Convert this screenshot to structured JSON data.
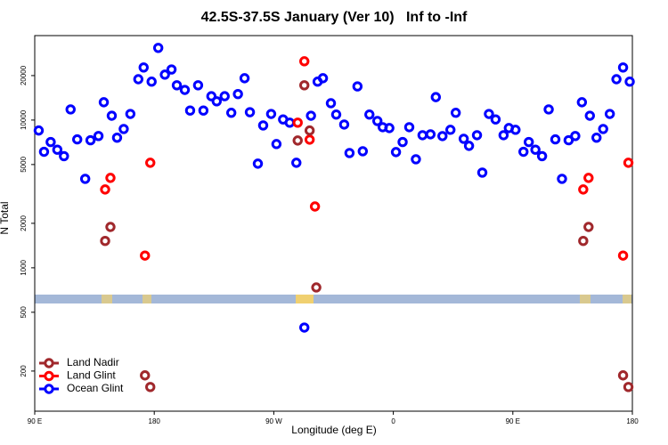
{
  "chart_data": {
    "type": "scatter",
    "title": "42.5S-37.5S January (Ver 10)   Inf to -Inf",
    "x_label": "Longitude (deg E)",
    "y_label": "N Total",
    "log_y": true,
    "legend": "lower left",
    "xlim": [
      90,
      540
    ],
    "ylim": [
      107,
      37300
    ],
    "xticks": [
      {
        "value": 90,
        "label": "90 E"
      },
      180,
      {
        "value": 270,
        "label": "90 W"
      },
      {
        "value": 360,
        "label": "0"
      },
      {
        "value": 450,
        "label": "90 E"
      },
      {
        "value": 540,
        "label": "180"
      }
    ],
    "yticks": [
      200,
      500,
      1000,
      2000,
      5000,
      10000,
      20000
    ],
    "series": [
      {
        "name": "Land Nadir",
        "color": "#a0282c",
        "x": [
          143,
          147,
          173,
          177,
          293,
          288,
          297,
          302,
          503,
          507,
          533,
          537
        ],
        "values": [
          1520,
          1890,
          187,
          156,
          17200,
          7270,
          8500,
          736,
          1520,
          1890,
          187,
          156
        ]
      },
      {
        "name": "Land Glint",
        "color": "#ff0000",
        "x": [
          143,
          147,
          173,
          177,
          293,
          288,
          297,
          301,
          503,
          507,
          533,
          537
        ],
        "values": [
          3390,
          4060,
          1210,
          5140,
          25000,
          9600,
          7370,
          2600,
          3390,
          4060,
          1210,
          5140
        ]
      },
      {
        "name": "Ocean Glint",
        "color": "#0000ff",
        "x": [
          93,
          97,
          102,
          107,
          112,
          117,
          122,
          128,
          132,
          138,
          142,
          148,
          152,
          157,
          162,
          168,
          172,
          178,
          183,
          188,
          193,
          197,
          203,
          207,
          213,
          217,
          223,
          227,
          233,
          238,
          243,
          248,
          252,
          258,
          262,
          268,
          272,
          277,
          282,
          287,
          293,
          298,
          303,
          307,
          313,
          317,
          323,
          327,
          333,
          337,
          342,
          348,
          352,
          357,
          362,
          367,
          372,
          377,
          382,
          388,
          392,
          397,
          403,
          407,
          413,
          417,
          423,
          427,
          432,
          437,
          443,
          447,
          452,
          458,
          462,
          467,
          472,
          477,
          482,
          487,
          492,
          497,
          502,
          508,
          513,
          518,
          523,
          528,
          533,
          538
        ],
        "values": [
          8500,
          6100,
          7100,
          6300,
          5700,
          11800,
          7400,
          4000,
          7300,
          7800,
          13200,
          10700,
          7600,
          8700,
          11000,
          18900,
          22700,
          18200,
          30800,
          20300,
          22000,
          17200,
          16000,
          11600,
          17200,
          11600,
          14500,
          13400,
          14500,
          11200,
          15000,
          19200,
          11300,
          5070,
          9200,
          11000,
          6880,
          10100,
          9600,
          5140,
          394,
          10700,
          18200,
          19200,
          13000,
          10900,
          9330,
          5980,
          16900,
          6150,
          10900,
          9860,
          8950,
          8830,
          6070,
          7100,
          8950,
          5430,
          7900,
          8010,
          14300,
          7790,
          8590,
          11200,
          7470,
          6690,
          7900,
          4410,
          11000,
          10100,
          7900,
          8830,
          8590,
          6100,
          7100,
          6300,
          5700,
          11800,
          7400,
          4000,
          7300,
          7800,
          13200,
          10700,
          7600,
          8700,
          11000,
          18900,
          22700,
          18200
        ]
      }
    ]
  }
}
